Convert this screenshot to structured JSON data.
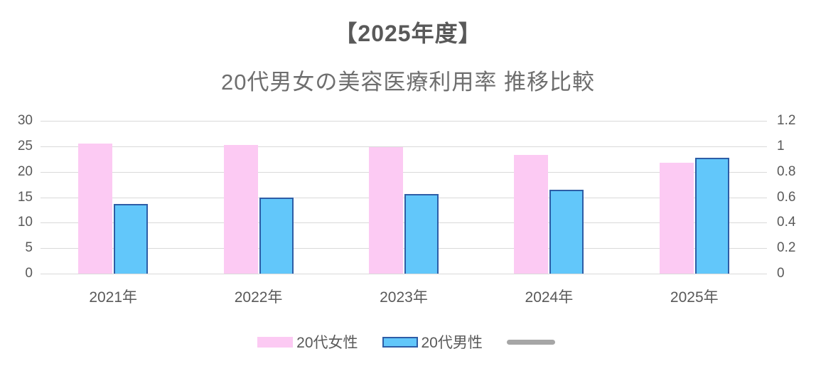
{
  "title": "【2025年度】",
  "subtitle": "20代男女の美容医療利用率 推移比較",
  "legend": {
    "female_label": "20代女性",
    "male_label": "20代男性",
    "line_label": ""
  },
  "colors": {
    "female_fill": "#fccaf3",
    "male_fill": "#62c7fa",
    "male_border": "#2e5da6",
    "line_series": "#a6a6a6",
    "gridline": "#d9d9d9",
    "axis_text": "#595959",
    "title_text": "#595959"
  },
  "chart_data": {
    "type": "bar",
    "title": "【2025年度】",
    "subtitle": "20代男女の美容医療利用率 推移比較",
    "categories": [
      "2021年",
      "2022年",
      "2023年",
      "2024年",
      "2025年"
    ],
    "series": [
      {
        "name": "20代女性",
        "type": "bar",
        "axis": "left",
        "color": "#fccaf3",
        "values": [
          25.6,
          25.2,
          24.9,
          23.3,
          21.7
        ]
      },
      {
        "name": "20代男性",
        "type": "bar",
        "axis": "left",
        "color": "#62c7fa",
        "border": "#2e5da6",
        "values": [
          13.7,
          14.9,
          15.6,
          16.4,
          22.8
        ]
      },
      {
        "name": "",
        "type": "line",
        "axis": "right",
        "color": "#a6a6a6",
        "values": []
      }
    ],
    "left_axis": {
      "min": 0,
      "max": 30,
      "step": 5,
      "ticks": [
        "0",
        "5",
        "10",
        "15",
        "20",
        "25",
        "30"
      ]
    },
    "right_axis": {
      "min": 0,
      "max": 1.2,
      "step": 0.2,
      "ticks": [
        "0",
        "0.2",
        "0.4",
        "0.6",
        "0.8",
        "1",
        "1.2"
      ]
    },
    "grid": true,
    "legend_position": "bottom",
    "xlabel": "",
    "ylabel": ""
  }
}
